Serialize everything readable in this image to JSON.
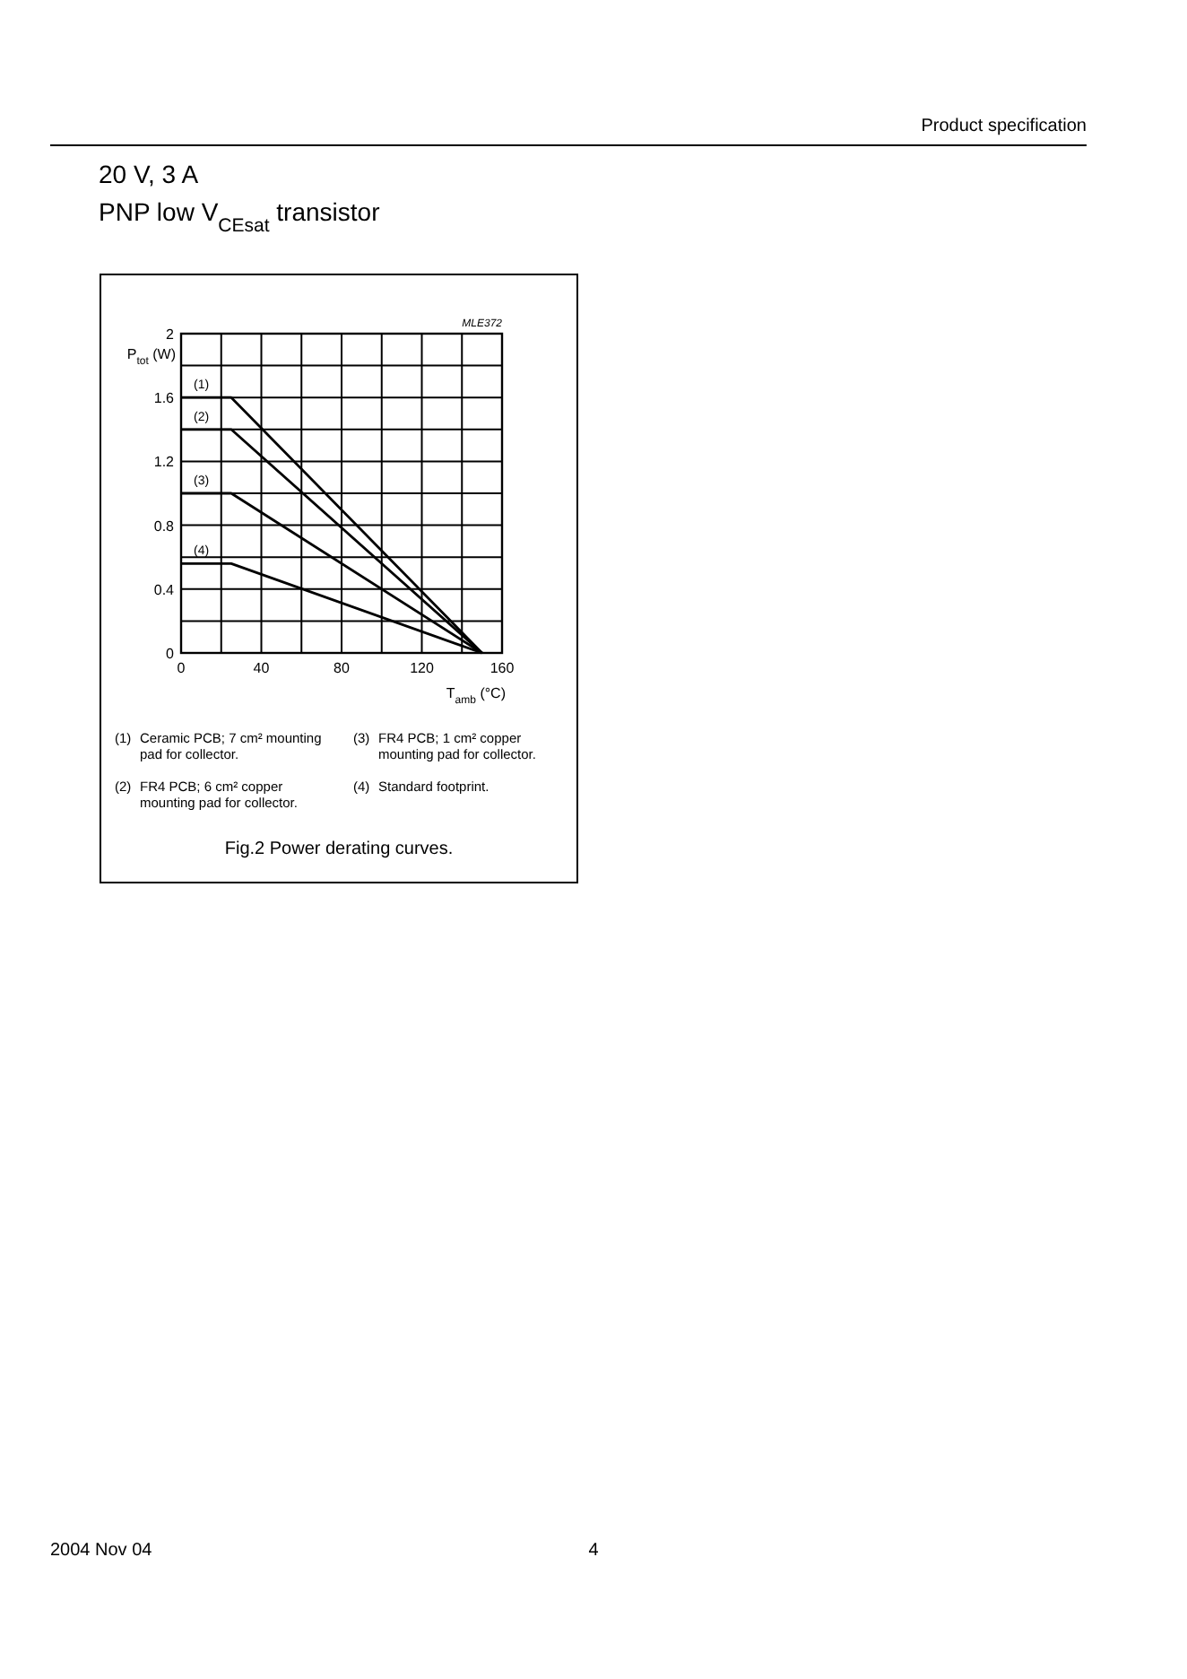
{
  "chart_data": {
    "type": "line",
    "title": "Fig.2  Power derating curves.",
    "xlabel": "T$_{amb}$ (°C)",
    "ylabel": "P$_{tot}$ (W)",
    "x": [
      0,
      25,
      150
    ],
    "series": [
      {
        "name": "(1)",
        "color": "#000000",
        "values": [
          1.6,
          1.6,
          0
        ]
      },
      {
        "name": "(2)",
        "color": "#000000",
        "values": [
          1.4,
          1.4,
          0
        ]
      },
      {
        "name": "(3)",
        "color": "#000000",
        "values": [
          1.0,
          1.0,
          0
        ]
      },
      {
        "name": "(4)",
        "color": "#000000",
        "values": [
          0.56,
          0.56,
          0
        ]
      }
    ],
    "xlim": [
      0,
      160
    ],
    "xticks": [
      0,
      {
        "value": 20,
        "label": null
      },
      40,
      {
        "value": 60,
        "label": null
      },
      80,
      {
        "value": 100,
        "label": null
      },
      120,
      {
        "value": 140,
        "label": null
      },
      160
    ],
    "ylim": [
      0,
      2
    ],
    "yticks": [
      0,
      {
        "value": 0.2,
        "label": null
      },
      0.4,
      {
        "value": 0.6,
        "label": null
      },
      0.8,
      {
        "value": 1.0,
        "label": null
      },
      1.2,
      {
        "value": 1.4,
        "label": null
      },
      1.6,
      {
        "value": 1.8,
        "label": null
      },
      2
    ],
    "grid": true,
    "marker": "none",
    "line_style": "solid",
    "annotations": [
      "Product specification",
      "20 V, 3 A",
      "PNP low V$_{CEsat}$ transistor",
      "MLE372",
      "(1) Ceramic PCB; 7 cm² mounting pad for collector.",
      "(2) FR4 PCB; 6 cm² copper mounting pad for collector.",
      "(3) FR4 PCB; 1 cm² copper mounting pad for collector.",
      "(4) Standard footprint.",
      "2004 Nov 04",
      "4"
    ]
  }
}
